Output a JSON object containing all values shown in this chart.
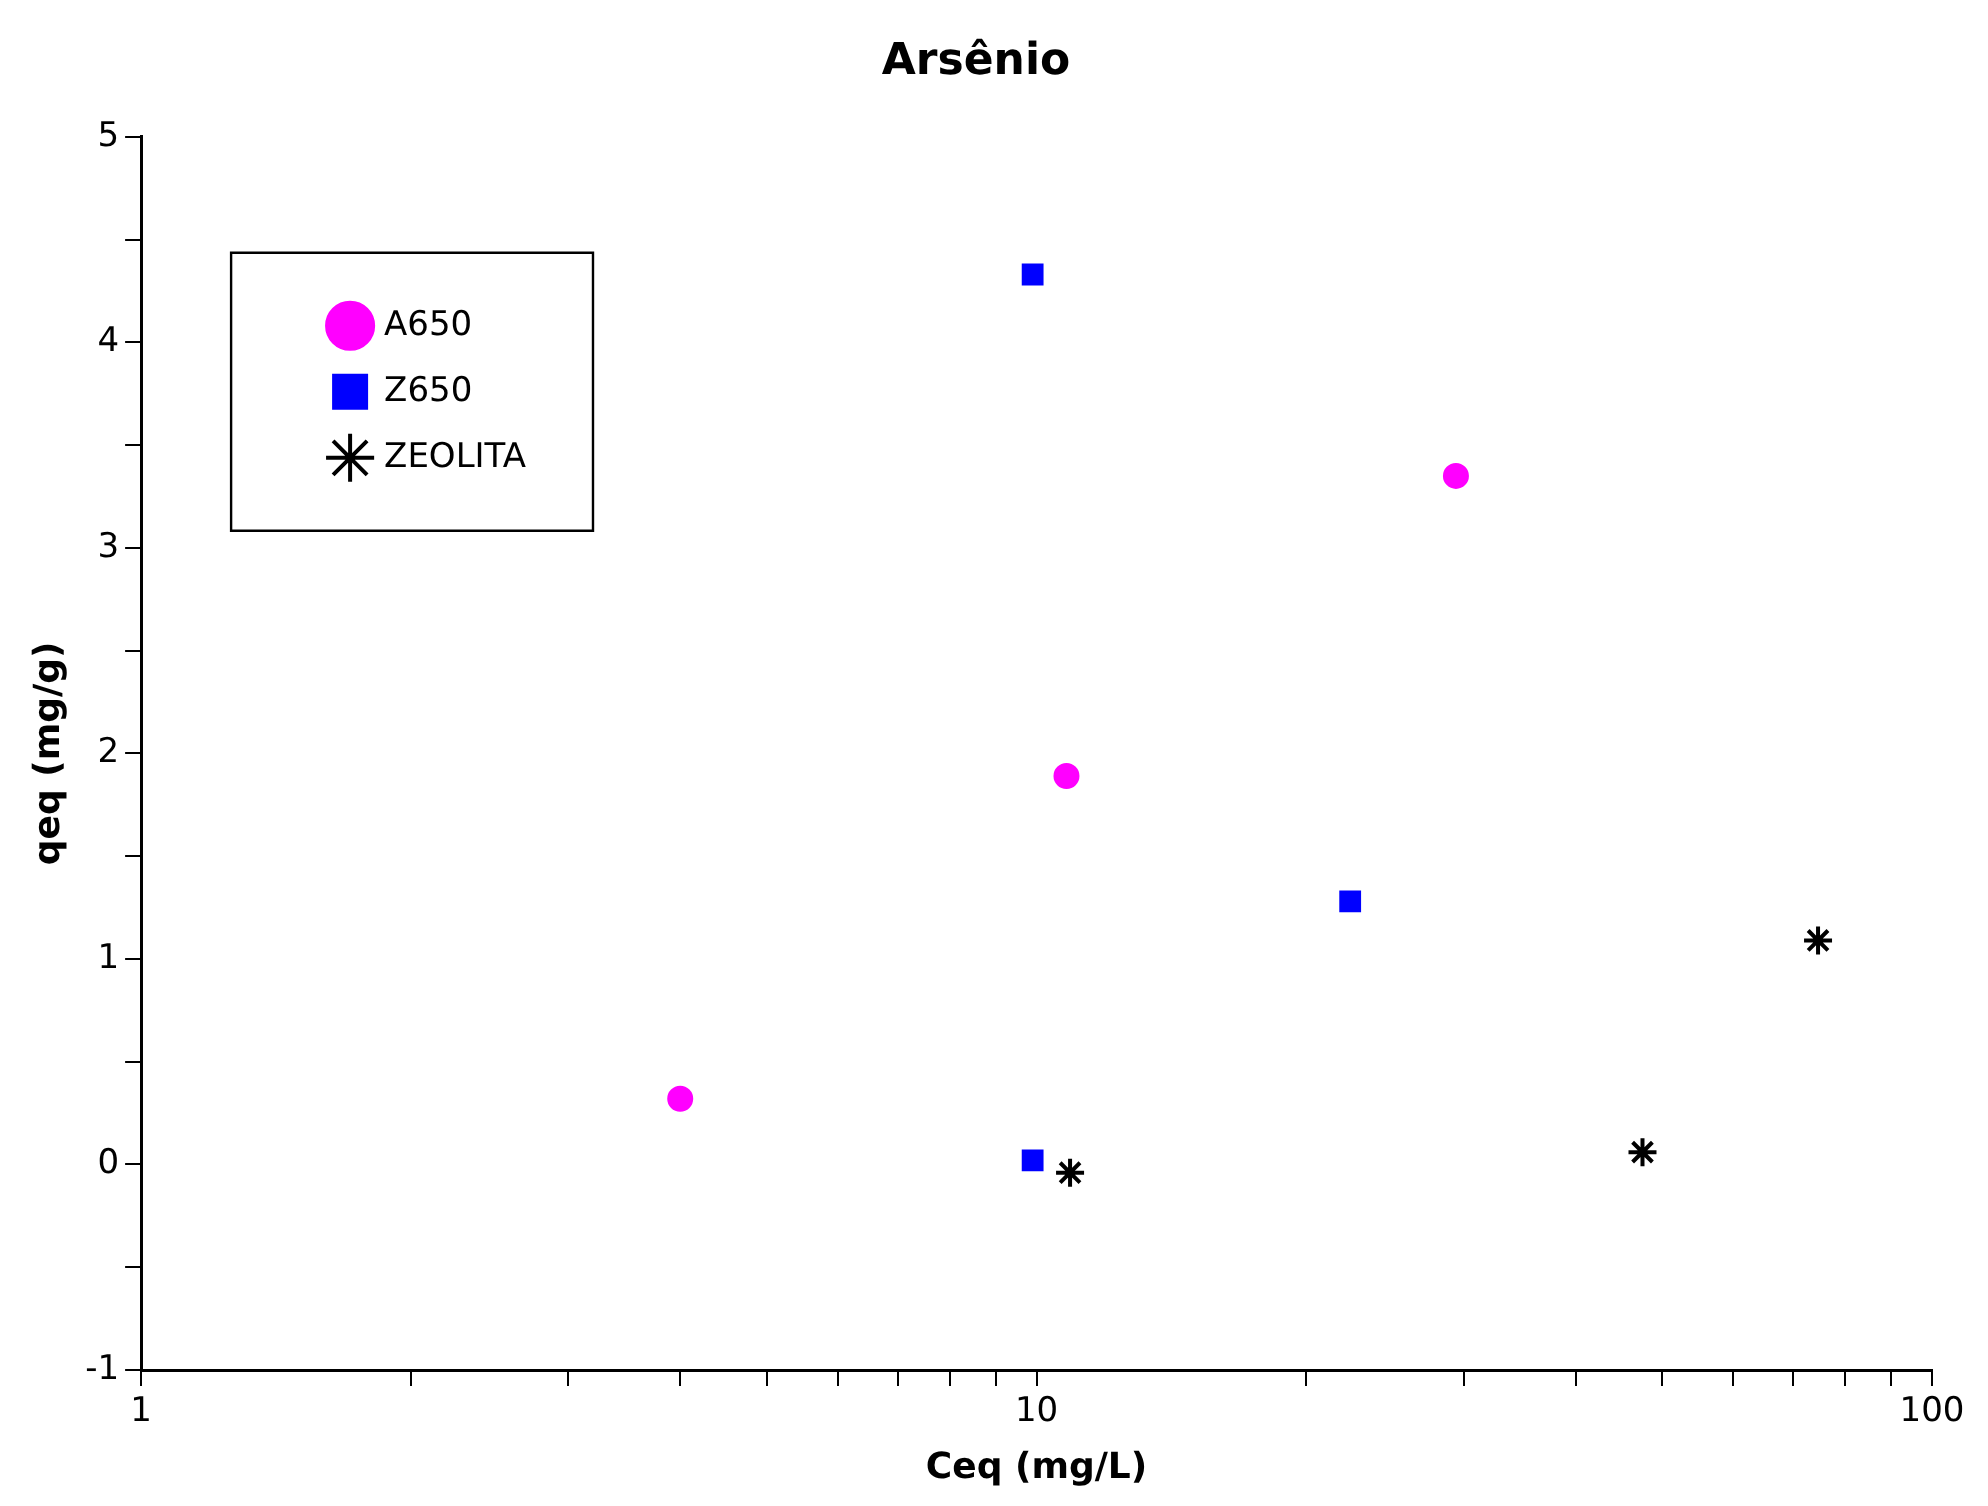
{
  "chart_data": {
    "type": "scatter",
    "title": "Arsênio",
    "xlabel": "Ceq (mg/L)",
    "ylabel": "qeq (mg/g)",
    "log": "x",
    "grid": false,
    "legend": "top left",
    "xlim": [
      1,
      100
    ],
    "xticks": [
      1,
      {
        "value": 2,
        "label": null
      },
      {
        "value": 3,
        "label": null
      },
      {
        "value": 4,
        "label": null
      },
      {
        "value": 5,
        "label": null
      },
      {
        "value": 6,
        "label": null
      },
      {
        "value": 7,
        "label": null
      },
      {
        "value": 8,
        "label": null
      },
      {
        "value": 9,
        "label": null
      },
      10,
      {
        "value": 20,
        "label": null
      },
      {
        "value": 30,
        "label": null
      },
      {
        "value": 40,
        "label": null
      },
      {
        "value": 50,
        "label": null
      },
      {
        "value": 60,
        "label": null
      },
      {
        "value": 70,
        "label": null
      },
      {
        "value": 80,
        "label": null
      },
      {
        "value": 90,
        "label": null
      },
      100
    ],
    "ylim": [
      -1,
      5
    ],
    "yticks": [
      -1,
      {
        "value": -0.5,
        "label": null
      },
      0,
      {
        "value": 0.5,
        "label": null
      },
      1,
      {
        "value": 1.5,
        "label": null
      },
      2,
      {
        "value": 2.5,
        "label": null
      },
      3,
      {
        "value": 3.5,
        "label": null
      },
      4,
      {
        "value": 4.5,
        "label": null
      },
      5
    ],
    "series": [
      {
        "name": "A650",
        "color": "#ff00ff",
        "marker": "circle",
        "x": [
          4,
          10.8,
          29.4
        ],
        "values": [
          0.32,
          1.89,
          3.35
        ]
      },
      {
        "name": "Z650",
        "color": "#0000ff",
        "marker": "square",
        "x": [
          9.9,
          22.4,
          9.9
        ],
        "values": [
          4.33,
          1.28,
          0.02
        ]
      },
      {
        "name": "ZEOLITA",
        "color": "#000000",
        "marker": "cross",
        "x": [
          10.9,
          47.5,
          74.6
        ],
        "values": [
          -0.04,
          0.06,
          1.09
        ]
      }
    ]
  }
}
